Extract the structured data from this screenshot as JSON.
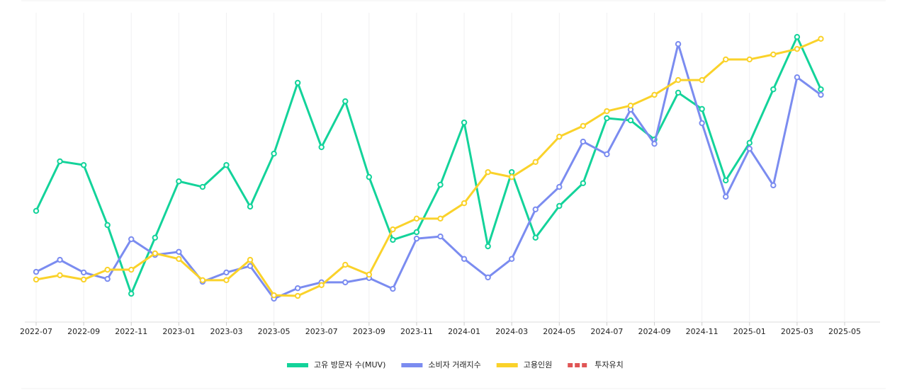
{
  "chart_data": {
    "type": "line",
    "x": [
      "2022-07",
      "2022-08",
      "2022-09",
      "2022-10",
      "2022-11",
      "2022-12",
      "2023-01",
      "2023-02",
      "2023-03",
      "2023-04",
      "2023-05",
      "2023-06",
      "2023-07",
      "2023-08",
      "2023-09",
      "2023-10",
      "2023-11",
      "2023-12",
      "2024-01",
      "2024-02",
      "2024-03",
      "2024-04",
      "2024-05",
      "2024-06",
      "2024-07",
      "2024-08",
      "2024-09",
      "2024-10",
      "2024-11",
      "2024-12",
      "2025-01",
      "2025-02",
      "2025-03",
      "2025-04"
    ],
    "series": [
      {
        "name": "고유 방문자 수(MUV)",
        "color": "#13d39a",
        "values": [
          36.1,
          52.2,
          51.0,
          31.5,
          9.2,
          27.4,
          45.7,
          43.9,
          51.0,
          37.5,
          54.7,
          77.7,
          56.8,
          71.7,
          47.1,
          26.7,
          29.2,
          44.6,
          64.8,
          24.6,
          48.7,
          27.4,
          37.7,
          45.1,
          66.2,
          65.5,
          59.3,
          74.5,
          69.2,
          46.0,
          58.2,
          75.6,
          92.6,
          75.6
        ]
      },
      {
        "name": "소비자 거래지수",
        "color": "#7b8cf0",
        "values": [
          16.3,
          20.2,
          16.1,
          14.0,
          26.9,
          21.8,
          22.8,
          13.1,
          16.1,
          18.2,
          7.6,
          11.0,
          12.9,
          12.9,
          14.3,
          10.8,
          27.1,
          27.8,
          20.5,
          14.5,
          20.5,
          36.6,
          43.9,
          58.6,
          54.5,
          69.0,
          57.9,
          90.3,
          64.6,
          40.7,
          56.3,
          44.4,
          79.5,
          73.8
        ]
      },
      {
        "name": "고용인원",
        "color": "#fad22a",
        "values": [
          13.8,
          15.2,
          13.8,
          17.0,
          17.0,
          22.3,
          20.5,
          13.6,
          13.6,
          20.2,
          8.7,
          8.5,
          12.0,
          18.6,
          15.4,
          30.1,
          33.6,
          33.6,
          38.6,
          48.7,
          47.1,
          52.0,
          60.2,
          63.7,
          68.5,
          70.3,
          73.8,
          78.6,
          78.6,
          85.3,
          85.3,
          86.9,
          88.7,
          92.0
        ]
      },
      {
        "name": "투자유치",
        "color": "#e05555",
        "values": [
          null,
          null,
          null,
          null,
          null,
          null,
          null,
          null,
          null,
          null,
          null,
          null,
          null,
          null,
          null,
          null,
          null,
          null,
          null,
          null,
          null,
          null,
          null,
          null,
          null,
          null,
          null,
          null,
          null,
          null,
          null,
          null,
          null,
          null
        ]
      }
    ],
    "xlim": [
      "2022-07",
      "2025-05"
    ],
    "xticks": [
      "2022-07",
      "2022-09",
      "2022-11",
      "2023-01",
      "2023-03",
      "2023-05",
      "2023-07",
      "2023-09",
      "2023-11",
      "2024-01",
      "2024-03",
      "2024-05",
      "2024-07",
      "2024-09",
      "2024-11",
      "2025-01",
      "2025-03",
      "2025-05"
    ],
    "ylim": [
      0,
      100
    ],
    "grid": true
  }
}
